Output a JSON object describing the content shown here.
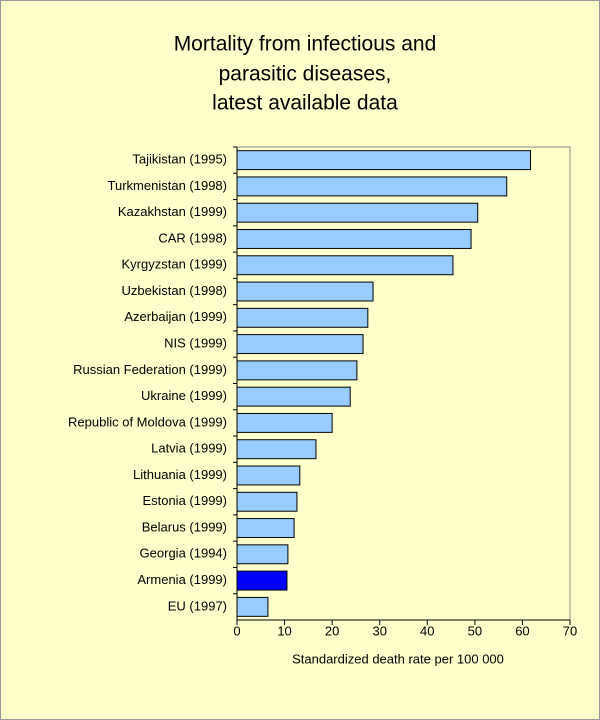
{
  "chart_data": {
    "type": "barh",
    "title": [
      "Mortality from infectious and",
      "parasitic diseases,",
      "latest available data"
    ],
    "x_label": "Standardized death rate per 100 000",
    "categories": [
      "Tajikistan (1995)",
      "Turkmenistan (1998)",
      "Kazakhstan (1999)",
      "CAR (1998)",
      "Kyrgyzstan (1999)",
      "Uzbekistan (1998)",
      "Azerbaijan (1999)",
      "NIS (1999)",
      "Russian Federation (1999)",
      "Ukraine (1999)",
      "Republic of Moldova (1999)",
      "Latvia (1999)",
      "Lithuania (1999)",
      "Estonia (1999)",
      "Belarus (1999)",
      "Georgia (1994)",
      "Armenia (1999)",
      "EU (1997)"
    ],
    "values": [
      61.7,
      56.7,
      50.6,
      49.2,
      45.4,
      28.6,
      27.5,
      26.5,
      25.2,
      23.8,
      20.0,
      16.6,
      13.2,
      12.6,
      12.0,
      10.7,
      10.5,
      6.5
    ],
    "colors": [
      "#99ccff",
      "#99ccff",
      "#99ccff",
      "#99ccff",
      "#99ccff",
      "#99ccff",
      "#99ccff",
      "#99ccff",
      "#99ccff",
      "#99ccff",
      "#99ccff",
      "#99ccff",
      "#99ccff",
      "#99ccff",
      "#99ccff",
      "#99ccff",
      "#0000ff",
      "#99ccff"
    ],
    "xlim": [
      0,
      70
    ],
    "xticks": [
      0,
      10,
      20,
      30,
      40,
      50,
      60,
      70
    ],
    "grid": false
  }
}
